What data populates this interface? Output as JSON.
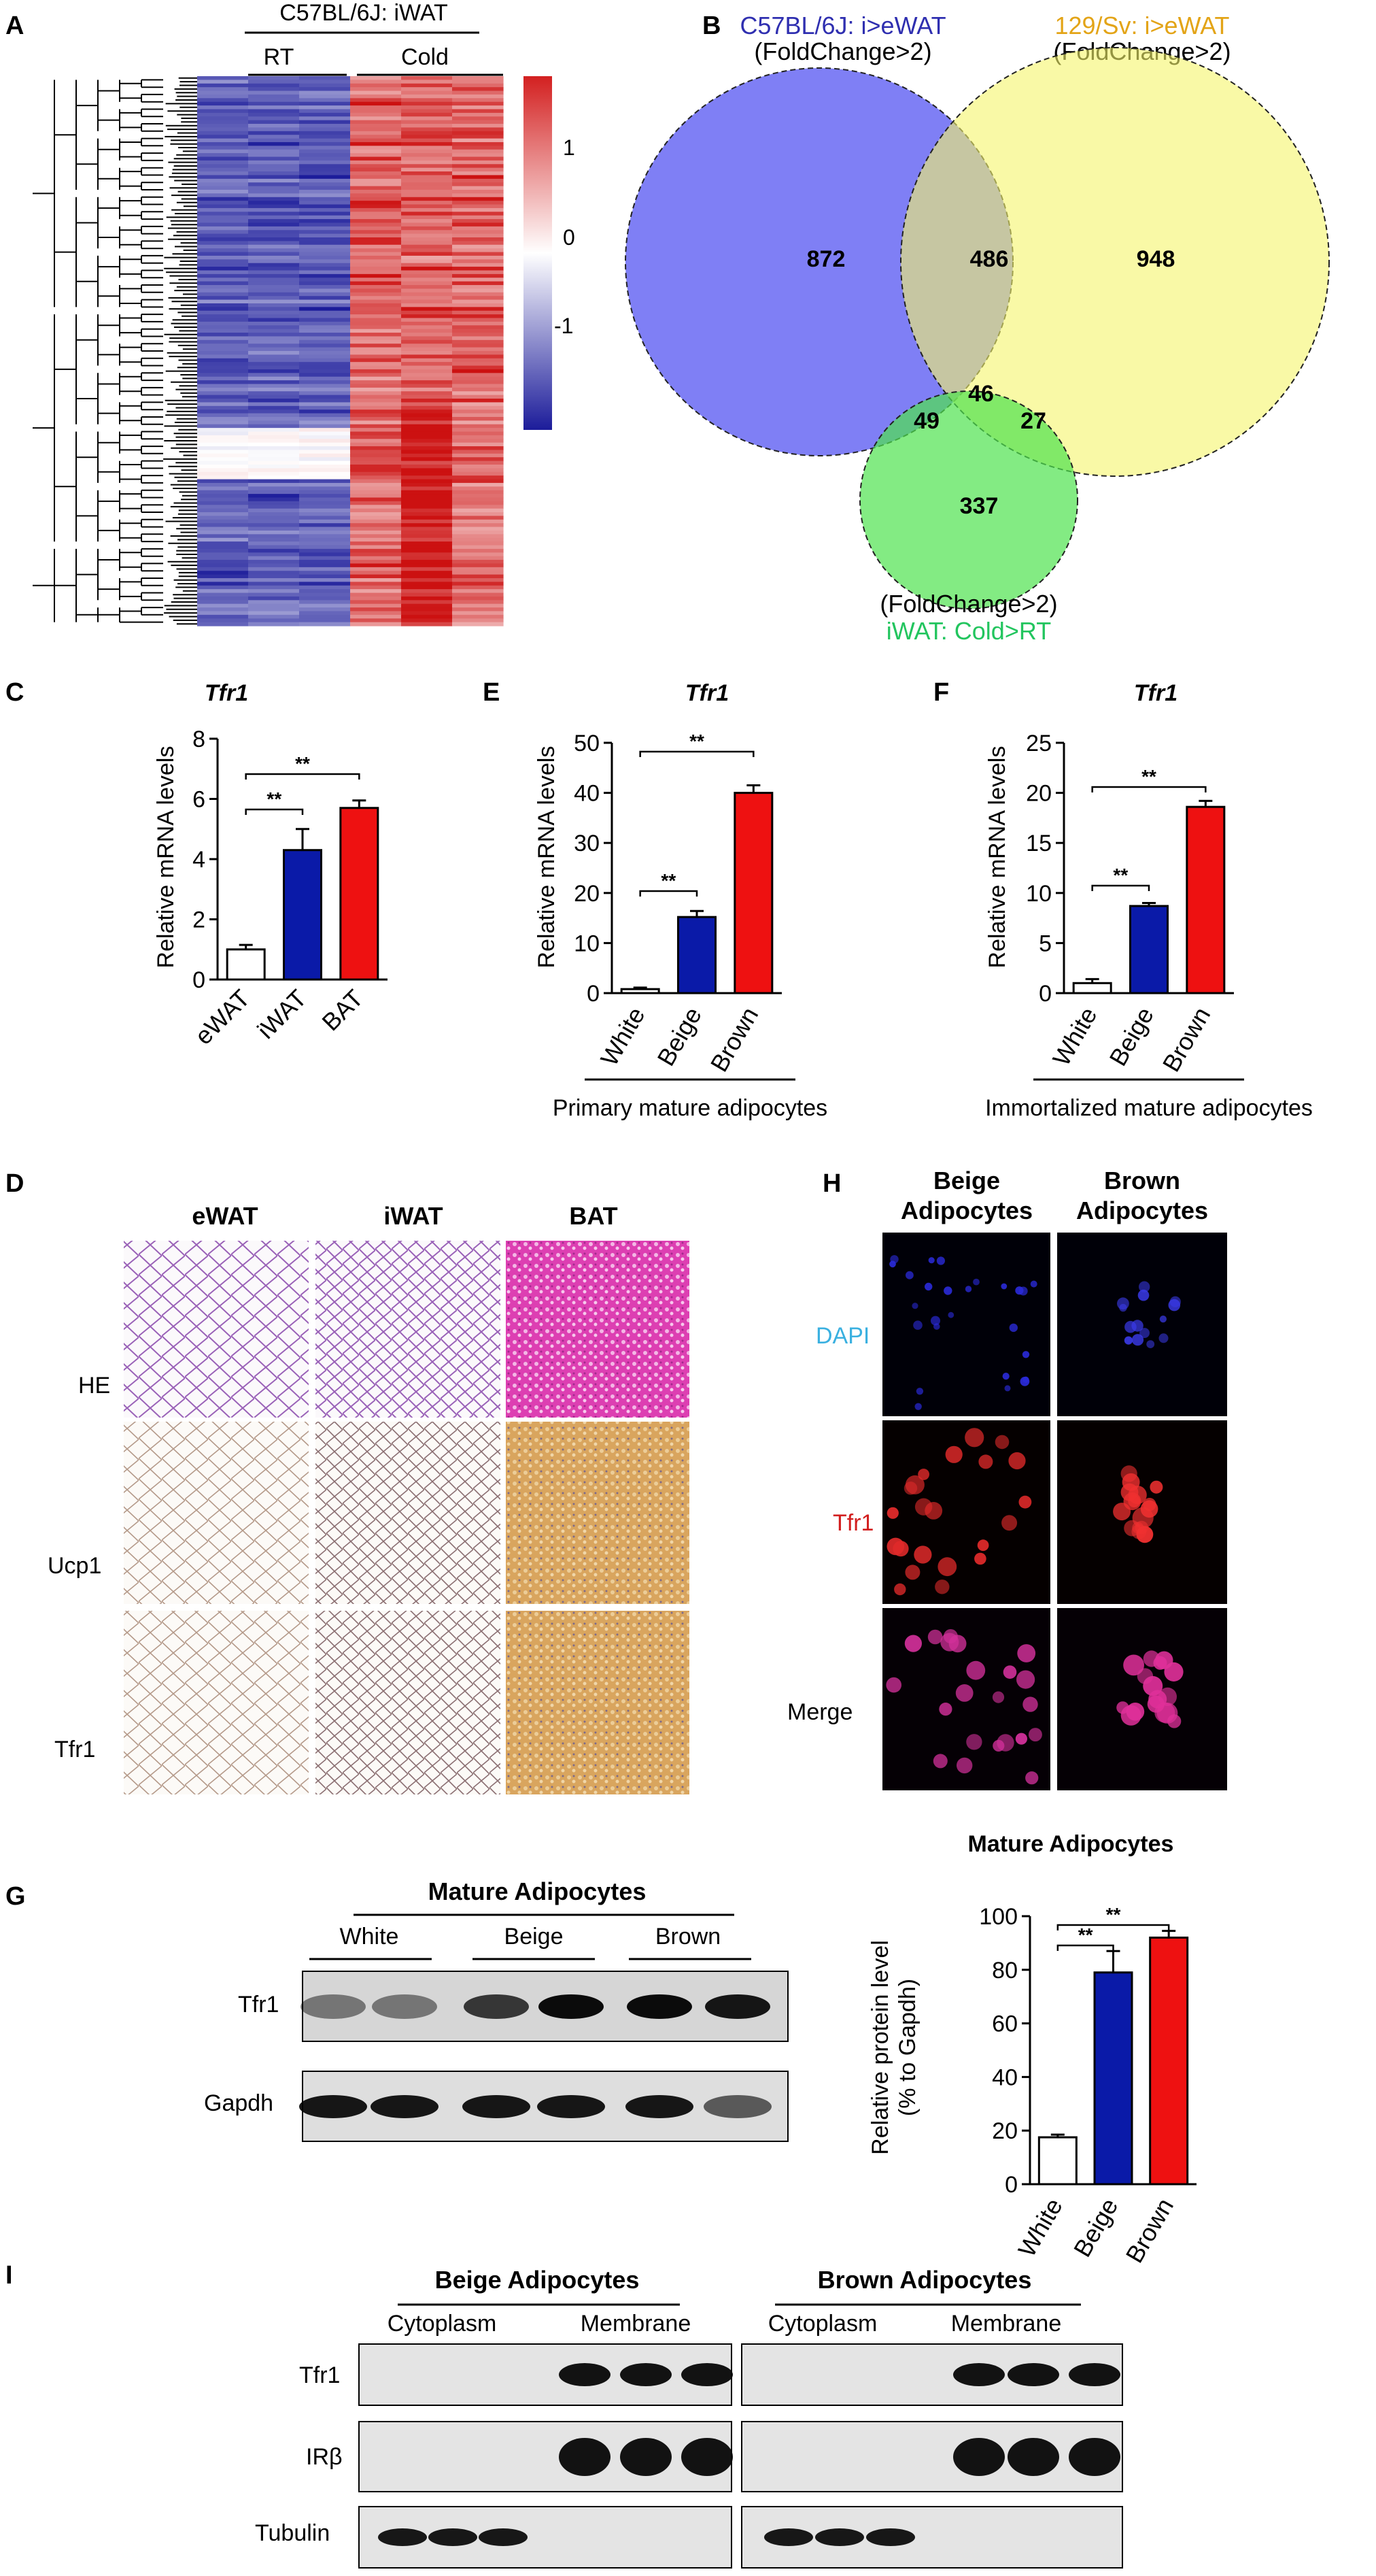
{
  "panel_letters": [
    "A",
    "B",
    "C",
    "D",
    "E",
    "F",
    "G",
    "H",
    "I"
  ],
  "colors": {
    "blue_bar": "#0a1aa8",
    "red_bar": "#ee1111",
    "heat_blue": "#1c1c9a",
    "heat_red": "#cc1111",
    "venn_blue": "#5b5bf2",
    "venn_yellow": "#f5f56a",
    "venn_green": "#4ee34e",
    "venn_blue_label": "#2f2fb0",
    "venn_yellow_label": "#e3a417",
    "venn_green_label": "#22c55e",
    "dapi_label": "#3ab0e0",
    "tfr1_label": "#d21e1e"
  },
  "panelA": {
    "strain_label": "C57BL/6J: iWAT",
    "groups": [
      "RT",
      "Cold"
    ],
    "colorbar_ticks": [
      "1",
      "0",
      "-1"
    ]
  },
  "panelB": {
    "set_blue": {
      "label": "C57BL/6J: i>eWAT",
      "sub": "(FoldChange>2)"
    },
    "set_yellow": {
      "label": "129/Sv: i>eWAT",
      "sub": "(FoldChange>2)"
    },
    "set_green": {
      "sub": "(FoldChange>2)",
      "label": "iWAT: Cold>RT"
    },
    "counts": {
      "blue_only": "872",
      "blue_yellow": "486",
      "yellow_only": "948",
      "all_three": "46",
      "blue_green": "49",
      "yellow_green": "27",
      "green_only": "337"
    }
  },
  "panelC": {
    "gene": "Tfr1",
    "ylabel": "Relative mRNA levels",
    "sig1": "**",
    "sig2": "**"
  },
  "panelE": {
    "gene": "Tfr1",
    "ylabel": "Relative mRNA levels",
    "xgroup": "Primary mature adipocytes",
    "sig1": "**",
    "sig2": "**"
  },
  "panelF": {
    "gene": "Tfr1",
    "ylabel": "Relative mRNA levels",
    "xgroup": "Immortalized mature adipocytes",
    "sig1": "**",
    "sig2": "**"
  },
  "panelD": {
    "columns": [
      "eWAT",
      "iWAT",
      "BAT"
    ],
    "rows": [
      "HE",
      "Ucp1",
      "Tfr1"
    ]
  },
  "panelH": {
    "columns": [
      "Beige",
      "Adipocytes",
      "Brown",
      "Adipocytes"
    ],
    "rows": [
      "DAPI",
      "Tfr1",
      "Merge"
    ]
  },
  "panelG": {
    "header": "Mature Adipocytes",
    "groups": [
      "White",
      "Beige",
      "Brown"
    ],
    "bands": [
      "Tfr1",
      "Gapdh"
    ],
    "chart_title": "Mature Adipocytes",
    "ylabel_line1": "Relative protein level",
    "ylabel_line2": "(% to Gapdh)",
    "sig1": "**",
    "sig2": "**"
  },
  "panelI": {
    "left_header": "Beige Adipocytes",
    "right_header": "Brown Adipocytes",
    "fractions": [
      "Cytoplasm",
      "Membrane",
      "Cytoplasm",
      "Membrane"
    ],
    "bands": [
      "Tfr1",
      "IRβ",
      "Tubulin"
    ]
  },
  "chart_data": [
    {
      "panel": "C",
      "type": "bar",
      "title": "Tfr1",
      "ylabel": "Relative mRNA levels",
      "categories": [
        "eWAT",
        "iWAT",
        "BAT"
      ],
      "values": [
        1.0,
        4.3,
        5.7
      ],
      "errors": [
        0.15,
        0.7,
        0.25
      ],
      "colors": [
        "#ffffff",
        "#0a1aa8",
        "#ee1111"
      ],
      "ylim": [
        0,
        8
      ],
      "yticks": [
        0,
        2,
        4,
        6,
        8
      ]
    },
    {
      "panel": "E",
      "type": "bar",
      "title": "Tfr1",
      "ylabel": "Relative mRNA levels",
      "categories": [
        "White",
        "Beige",
        "Brown"
      ],
      "values": [
        0.8,
        15.2,
        40.0
      ],
      "errors": [
        0.3,
        1.2,
        1.5
      ],
      "colors": [
        "#ffffff",
        "#0a1aa8",
        "#ee1111"
      ],
      "ylim": [
        0,
        50
      ],
      "yticks": [
        0,
        10,
        20,
        30,
        40,
        50
      ]
    },
    {
      "panel": "F",
      "type": "bar",
      "title": "Tfr1",
      "ylabel": "Relative mRNA levels",
      "categories": [
        "White",
        "Beige",
        "Brown"
      ],
      "values": [
        1.0,
        8.7,
        18.6
      ],
      "errors": [
        0.4,
        0.3,
        0.6
      ],
      "colors": [
        "#ffffff",
        "#0a1aa8",
        "#ee1111"
      ],
      "ylim": [
        0,
        25
      ],
      "yticks": [
        0,
        5,
        10,
        15,
        20,
        25
      ]
    },
    {
      "panel": "G",
      "type": "bar",
      "title": "Mature Adipocytes",
      "ylabel": "Relative protein level (% to Gapdh)",
      "categories": [
        "White",
        "Beige",
        "Brown"
      ],
      "values": [
        17.5,
        79.0,
        92.0
      ],
      "errors": [
        1.0,
        8.0,
        2.5
      ],
      "colors": [
        "#ffffff",
        "#0a1aa8",
        "#ee1111"
      ],
      "ylim": [
        0,
        100
      ],
      "yticks": [
        0,
        20,
        40,
        60,
        80,
        100
      ]
    }
  ]
}
